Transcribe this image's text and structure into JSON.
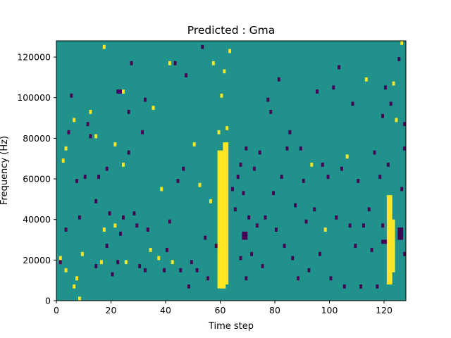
{
  "chart_data": {
    "type": "heatmap",
    "title": "Predicted : Gma",
    "xlabel": "Time step",
    "ylabel": "Frequency (Hz)",
    "xlim": [
      0,
      128
    ],
    "ylim": [
      0,
      128000
    ],
    "x_ticks": [
      0,
      20,
      40,
      60,
      80,
      100,
      120
    ],
    "x_tick_labels": [
      "0",
      "20",
      "40",
      "60",
      "80",
      "100",
      "120"
    ],
    "y_ticks": [
      0,
      20000,
      40000,
      60000,
      80000,
      100000,
      120000
    ],
    "y_tick_labels": [
      "0",
      "20000",
      "40000",
      "60000",
      "80000",
      "100000",
      "120000"
    ],
    "grid": false,
    "colors": {
      "background": "#21918c",
      "high": "#fde725",
      "low": "#440154"
    },
    "cell_height": 2000,
    "rect_cols": [
      {
        "x": [
          59,
          62
        ],
        "y": [
          6000,
          74000
        ],
        "value": "high"
      },
      {
        "x": [
          61,
          63
        ],
        "y": [
          8000,
          78000
        ],
        "value": "high"
      },
      {
        "x": [
          121,
          123
        ],
        "y": [
          8000,
          52000
        ],
        "value": "high"
      },
      {
        "x": [
          123,
          124
        ],
        "y": [
          14000,
          40000
        ],
        "value": "high"
      },
      {
        "x": [
          68,
          70
        ],
        "y": [
          30000,
          34000
        ],
        "value": "low"
      },
      {
        "x": [
          125,
          127
        ],
        "y": [
          30000,
          36000
        ],
        "value": "low"
      },
      {
        "x": [
          119,
          121
        ],
        "y": [
          28000,
          30000
        ],
        "value": "low"
      }
    ],
    "cells": [
      [
        1,
        18000,
        "low"
      ],
      [
        1,
        20000,
        "high"
      ],
      [
        2,
        68000,
        "high"
      ],
      [
        3,
        74000,
        "high"
      ],
      [
        3,
        34000,
        "low"
      ],
      [
        3,
        14000,
        "high"
      ],
      [
        4,
        82000,
        "low"
      ],
      [
        5,
        100000,
        "low"
      ],
      [
        6,
        6000,
        "high"
      ],
      [
        6,
        88000,
        "high"
      ],
      [
        7,
        10000,
        "high"
      ],
      [
        7,
        58000,
        "low"
      ],
      [
        8,
        0,
        "high"
      ],
      [
        8,
        40000,
        "low"
      ],
      [
        9,
        22000,
        "high"
      ],
      [
        10,
        60000,
        "low"
      ],
      [
        11,
        86000,
        "low"
      ],
      [
        12,
        92000,
        "high"
      ],
      [
        12,
        80000,
        "low"
      ],
      [
        14,
        16000,
        "low"
      ],
      [
        14,
        48000,
        "low"
      ],
      [
        14,
        80000,
        "high"
      ],
      [
        15,
        60000,
        "low"
      ],
      [
        16,
        18000,
        "high"
      ],
      [
        17,
        124000,
        "high"
      ],
      [
        17,
        34000,
        "high"
      ],
      [
        18,
        64000,
        "low"
      ],
      [
        18,
        26000,
        "low"
      ],
      [
        19,
        42000,
        "low"
      ],
      [
        20,
        12000,
        "low"
      ],
      [
        21,
        36000,
        "high"
      ],
      [
        21,
        76000,
        "high"
      ],
      [
        22,
        102000,
        "low"
      ],
      [
        22,
        18000,
        "low"
      ],
      [
        23,
        102000,
        "low"
      ],
      [
        23,
        32000,
        "low"
      ],
      [
        24,
        102000,
        "high"
      ],
      [
        24,
        66000,
        "high"
      ],
      [
        24,
        40000,
        "low"
      ],
      [
        25,
        18000,
        "high"
      ],
      [
        26,
        72000,
        "low"
      ],
      [
        26,
        92000,
        "low"
      ],
      [
        27,
        116000,
        "low"
      ],
      [
        28,
        42000,
        "low"
      ],
      [
        29,
        36000,
        "low"
      ],
      [
        30,
        16000,
        "low"
      ],
      [
        31,
        82000,
        "low"
      ],
      [
        32,
        98000,
        "low"
      ],
      [
        32,
        14000,
        "low"
      ],
      [
        33,
        34000,
        "low"
      ],
      [
        34,
        24000,
        "high"
      ],
      [
        35,
        94000,
        "high"
      ],
      [
        37,
        20000,
        "high"
      ],
      [
        38,
        54000,
        "high"
      ],
      [
        39,
        14000,
        "low"
      ],
      [
        40,
        24000,
        "low"
      ],
      [
        41,
        116000,
        "high"
      ],
      [
        41,
        38000,
        "low"
      ],
      [
        42,
        18000,
        "high"
      ],
      [
        43,
        116000,
        "low"
      ],
      [
        44,
        58000,
        "low"
      ],
      [
        45,
        14000,
        "low"
      ],
      [
        46,
        64000,
        "low"
      ],
      [
        47,
        110000,
        "low"
      ],
      [
        48,
        6000,
        "low"
      ],
      [
        49,
        18000,
        "low"
      ],
      [
        50,
        76000,
        "high"
      ],
      [
        51,
        14000,
        "low"
      ],
      [
        52,
        56000,
        "high"
      ],
      [
        53,
        124000,
        "low"
      ],
      [
        54,
        30000,
        "low"
      ],
      [
        55,
        10000,
        "low"
      ],
      [
        56,
        48000,
        "high"
      ],
      [
        57,
        116000,
        "high"
      ],
      [
        58,
        26000,
        "low"
      ],
      [
        59,
        82000,
        "high"
      ],
      [
        60,
        100000,
        "high"
      ],
      [
        61,
        112000,
        "high"
      ],
      [
        62,
        84000,
        "high"
      ],
      [
        63,
        122000,
        "high"
      ],
      [
        64,
        54000,
        "low"
      ],
      [
        65,
        44000,
        "low"
      ],
      [
        66,
        60000,
        "low"
      ],
      [
        67,
        66000,
        "low"
      ],
      [
        67,
        20000,
        "low"
      ],
      [
        68,
        52000,
        "low"
      ],
      [
        69,
        74000,
        "low"
      ],
      [
        69,
        10000,
        "low"
      ],
      [
        70,
        40000,
        "low"
      ],
      [
        71,
        22000,
        "low"
      ],
      [
        72,
        64000,
        "low"
      ],
      [
        73,
        36000,
        "low"
      ],
      [
        74,
        72000,
        "low"
      ],
      [
        75,
        16000,
        "low"
      ],
      [
        76,
        40000,
        "low"
      ],
      [
        77,
        98000,
        "low"
      ],
      [
        78,
        92000,
        "low"
      ],
      [
        79,
        52000,
        "low"
      ],
      [
        80,
        34000,
        "low"
      ],
      [
        81,
        108000,
        "low"
      ],
      [
        82,
        60000,
        "low"
      ],
      [
        83,
        26000,
        "low"
      ],
      [
        84,
        74000,
        "low"
      ],
      [
        85,
        82000,
        "low"
      ],
      [
        86,
        20000,
        "low"
      ],
      [
        87,
        46000,
        "low"
      ],
      [
        88,
        10000,
        "low"
      ],
      [
        89,
        74000,
        "low"
      ],
      [
        90,
        58000,
        "low"
      ],
      [
        91,
        38000,
        "low"
      ],
      [
        92,
        14000,
        "low"
      ],
      [
        93,
        66000,
        "high"
      ],
      [
        94,
        44000,
        "low"
      ],
      [
        95,
        102000,
        "low"
      ],
      [
        96,
        22000,
        "low"
      ],
      [
        97,
        66000,
        "low"
      ],
      [
        98,
        34000,
        "high"
      ],
      [
        99,
        60000,
        "low"
      ],
      [
        100,
        10000,
        "low"
      ],
      [
        101,
        104000,
        "low"
      ],
      [
        102,
        40000,
        "low"
      ],
      [
        103,
        114000,
        "low"
      ],
      [
        104,
        64000,
        "low"
      ],
      [
        105,
        6000,
        "low"
      ],
      [
        106,
        70000,
        "high"
      ],
      [
        107,
        36000,
        "low"
      ],
      [
        108,
        96000,
        "low"
      ],
      [
        109,
        26000,
        "low"
      ],
      [
        110,
        58000,
        "low"
      ],
      [
        111,
        6000,
        "low"
      ],
      [
        112,
        36000,
        "low"
      ],
      [
        113,
        108000,
        "high"
      ],
      [
        114,
        44000,
        "low"
      ],
      [
        115,
        24000,
        "low"
      ],
      [
        116,
        72000,
        "low"
      ],
      [
        117,
        6000,
        "low"
      ],
      [
        118,
        60000,
        "low"
      ],
      [
        119,
        90000,
        "low"
      ],
      [
        119,
        36000,
        "low"
      ],
      [
        120,
        104000,
        "low"
      ],
      [
        121,
        66000,
        "low"
      ],
      [
        122,
        96000,
        "low"
      ],
      [
        123,
        106000,
        "high"
      ],
      [
        124,
        88000,
        "high"
      ],
      [
        125,
        118000,
        "low"
      ],
      [
        126,
        54000,
        "low"
      ],
      [
        127,
        86000,
        "low"
      ],
      [
        127,
        74000,
        "low"
      ],
      [
        127,
        22000,
        "low"
      ],
      [
        126,
        126000,
        "high"
      ]
    ]
  }
}
